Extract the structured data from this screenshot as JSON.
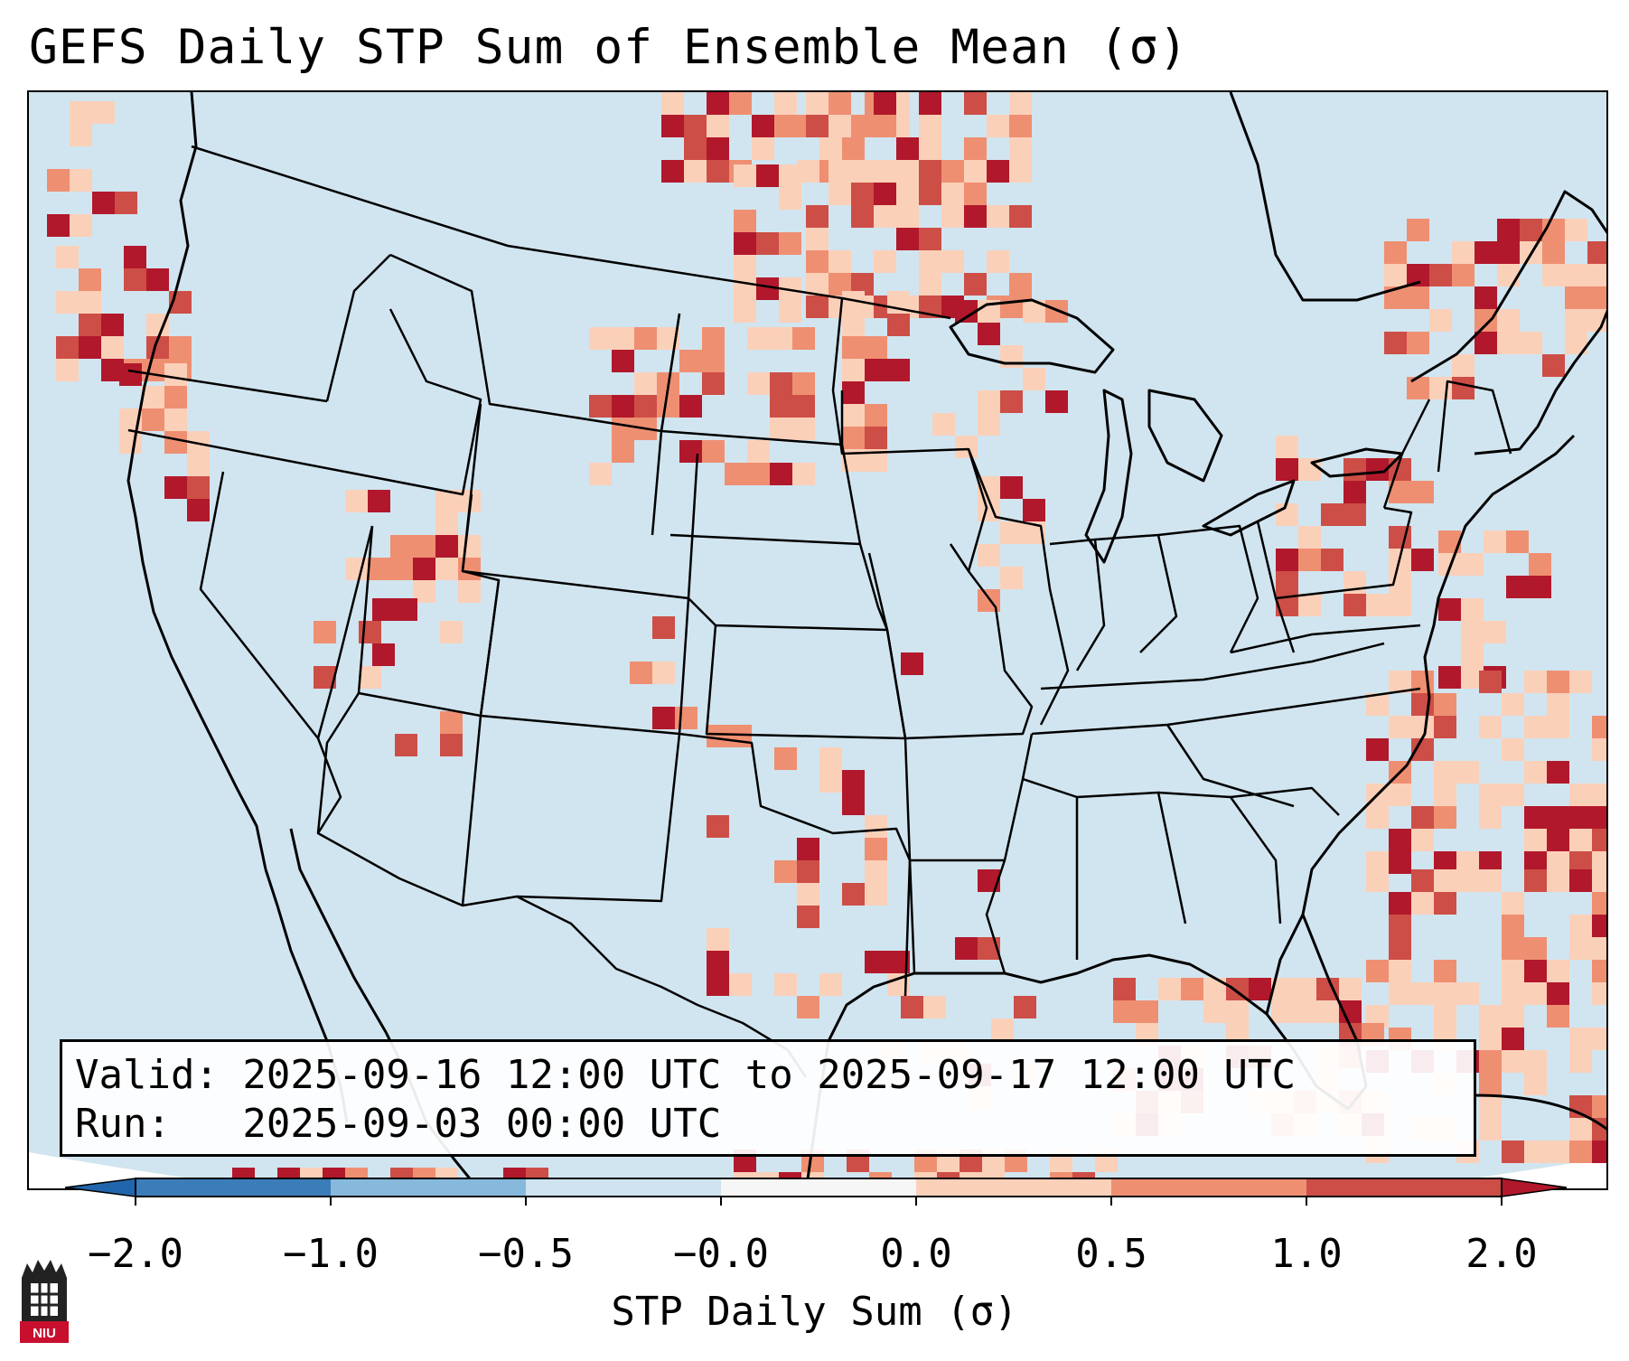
{
  "title": "GEFS Daily STP Sum of Ensemble Mean (σ)",
  "info": {
    "valid": "Valid: 2025-09-16 12:00 UTC to 2025-09-17 12:00 UTC",
    "run": "Run:   2025-09-03 00:00 UTC"
  },
  "colorbar": {
    "label": "STP Daily Sum (σ)",
    "ticks": [
      "−2.0",
      "−1.0",
      "−0.5",
      "−0.0",
      "0.0",
      "0.5",
      "1.0",
      "2.0"
    ],
    "colors": [
      "#3b7db9",
      "#86b9dc",
      "#cfe3f0",
      "#f6f6f6",
      "#fbd0b9",
      "#ef8f72",
      "#cd4e46"
    ],
    "extend_low_color": "#2166ac",
    "extend_high_color": "#b2182b"
  },
  "map": {
    "ocean_color": "#d1e5f0",
    "outside_color": "#ffffff",
    "border_color": "#000000"
  },
  "logo": {
    "text": "NIU"
  }
}
